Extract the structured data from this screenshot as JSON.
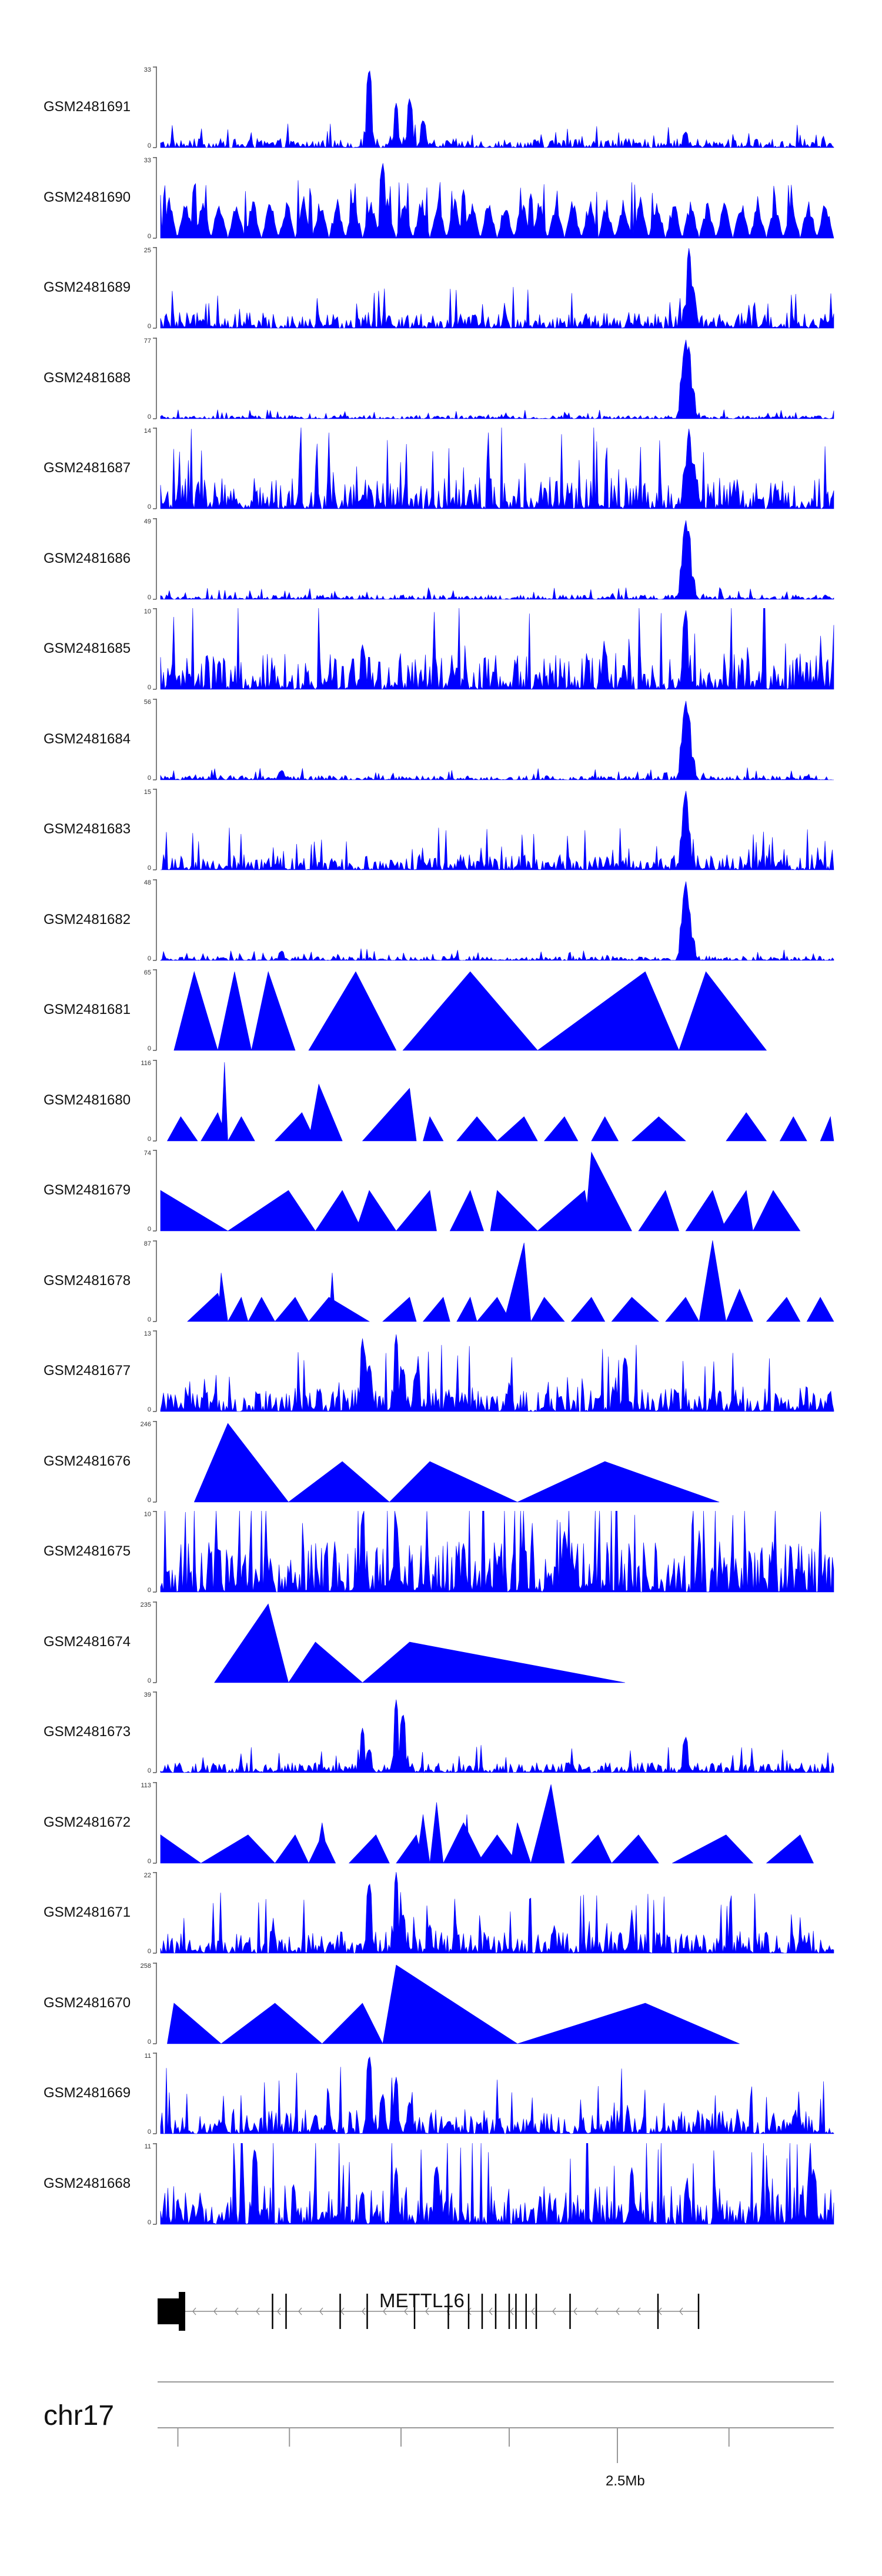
{
  "chart_data": {
    "type": "area",
    "color": "#0000ff",
    "tracks": [
      {
        "name": "GSM2481691",
        "ymax": "33",
        "ymin": "0",
        "pattern": "noise",
        "level": 0.08,
        "peaks": [
          [
            0.31,
            1.0
          ],
          [
            0.35,
            0.55
          ],
          [
            0.37,
            0.62
          ],
          [
            0.39,
            0.35
          ],
          [
            0.78,
            0.2
          ]
        ]
      },
      {
        "name": "GSM2481690",
        "ymax": "33",
        "ymin": "0",
        "pattern": "spikes",
        "level": 0.55,
        "peaks": [
          [
            0.05,
            0.65
          ],
          [
            0.33,
            0.95
          ],
          [
            0.45,
            0.6
          ],
          [
            0.55,
            0.55
          ]
        ]
      },
      {
        "name": "GSM2481689",
        "ymax": "25",
        "ymin": "0",
        "pattern": "noise",
        "level": 0.14,
        "peaks": [
          [
            0.78,
            0.3
          ],
          [
            0.785,
            1.0
          ],
          [
            0.79,
            0.55
          ]
        ]
      },
      {
        "name": "GSM2481688",
        "ymax": "77",
        "ymin": "0",
        "pattern": "noise",
        "level": 0.03,
        "peaks": [
          [
            0.775,
            0.55
          ],
          [
            0.78,
            1.0
          ],
          [
            0.785,
            0.9
          ],
          [
            0.79,
            0.4
          ]
        ]
      },
      {
        "name": "GSM2481687",
        "ymax": "14",
        "ymin": "0",
        "pattern": "noise",
        "level": 0.28,
        "peaks": [
          [
            0.78,
            0.55
          ],
          [
            0.785,
            1.0
          ],
          [
            0.79,
            0.6
          ]
        ]
      },
      {
        "name": "GSM2481686",
        "ymax": "49",
        "ymin": "0",
        "pattern": "noise",
        "level": 0.04,
        "peaks": [
          [
            0.775,
            0.45
          ],
          [
            0.78,
            1.0
          ],
          [
            0.785,
            0.85
          ],
          [
            0.79,
            0.3
          ]
        ]
      },
      {
        "name": "GSM2481685",
        "ymax": "10",
        "ymin": "0",
        "pattern": "noise",
        "level": 0.32,
        "peaks": [
          [
            0.78,
            1.0
          ],
          [
            0.66,
            0.5
          ],
          [
            0.3,
            0.55
          ]
        ]
      },
      {
        "name": "GSM2481684",
        "ymax": "56",
        "ymin": "0",
        "pattern": "noise",
        "level": 0.04,
        "peaks": [
          [
            0.18,
            0.12
          ],
          [
            0.775,
            0.5
          ],
          [
            0.78,
            1.0
          ],
          [
            0.785,
            0.8
          ],
          [
            0.79,
            0.3
          ]
        ]
      },
      {
        "name": "GSM2481683",
        "ymax": "15",
        "ymin": "0",
        "pattern": "noise",
        "level": 0.14,
        "peaks": [
          [
            0.775,
            0.45
          ],
          [
            0.78,
            1.0
          ],
          [
            0.785,
            0.5
          ]
        ]
      },
      {
        "name": "GSM2481682",
        "ymax": "48",
        "ymin": "0",
        "pattern": "noise",
        "level": 0.04,
        "peaks": [
          [
            0.18,
            0.12
          ],
          [
            0.775,
            0.5
          ],
          [
            0.78,
            1.0
          ],
          [
            0.785,
            0.65
          ],
          [
            0.79,
            0.3
          ]
        ]
      },
      {
        "name": "GSM2481681",
        "ymax": "65",
        "ymin": "0",
        "pattern": "triangles",
        "tris": [
          [
            0.02,
            0.05,
            0.085,
            0.97
          ],
          [
            0.085,
            0.11,
            0.135,
            0.97
          ],
          [
            0.135,
            0.16,
            0.2,
            0.97
          ],
          [
            0.22,
            0.29,
            0.35,
            0.97
          ],
          [
            0.36,
            0.46,
            0.56,
            0.97
          ],
          [
            0.56,
            0.72,
            0.77,
            0.97
          ],
          [
            0.77,
            0.81,
            0.9,
            0.97
          ]
        ]
      },
      {
        "name": "GSM2481680",
        "ymax": "116",
        "ymin": "0",
        "pattern": "triangles",
        "tris": [
          [
            0.01,
            0.03,
            0.055,
            0.3
          ],
          [
            0.06,
            0.085,
            0.1,
            0.35
          ],
          [
            0.09,
            0.095,
            0.1,
            0.97
          ],
          [
            0.1,
            0.12,
            0.14,
            0.3
          ],
          [
            0.17,
            0.21,
            0.23,
            0.35
          ],
          [
            0.22,
            0.235,
            0.27,
            0.7
          ],
          [
            0.3,
            0.37,
            0.38,
            0.65
          ],
          [
            0.39,
            0.4,
            0.42,
            0.3
          ],
          [
            0.44,
            0.47,
            0.5,
            0.3
          ],
          [
            0.5,
            0.54,
            0.56,
            0.3
          ],
          [
            0.57,
            0.6,
            0.62,
            0.3
          ],
          [
            0.64,
            0.66,
            0.68,
            0.3
          ],
          [
            0.7,
            0.74,
            0.78,
            0.3
          ],
          [
            0.84,
            0.87,
            0.9,
            0.35
          ],
          [
            0.92,
            0.94,
            0.96,
            0.3
          ],
          [
            0.98,
            0.995,
            1.0,
            0.3
          ]
        ]
      },
      {
        "name": "GSM2481679",
        "ymax": "74",
        "ymin": "0",
        "pattern": "triangles",
        "tris": [
          [
            0.0,
            0.0,
            0.1,
            0.5
          ],
          [
            0.1,
            0.19,
            0.23,
            0.5
          ],
          [
            0.23,
            0.27,
            0.3,
            0.5
          ],
          [
            0.29,
            0.31,
            0.35,
            0.5
          ],
          [
            0.35,
            0.4,
            0.41,
            0.5
          ],
          [
            0.43,
            0.46,
            0.48,
            0.5
          ],
          [
            0.49,
            0.5,
            0.56,
            0.5
          ],
          [
            0.56,
            0.63,
            0.64,
            0.5
          ],
          [
            0.63,
            0.64,
            0.7,
            0.97
          ],
          [
            0.71,
            0.75,
            0.77,
            0.5
          ],
          [
            0.78,
            0.82,
            0.84,
            0.5
          ],
          [
            0.83,
            0.87,
            0.88,
            0.5
          ],
          [
            0.88,
            0.91,
            0.95,
            0.5
          ]
        ]
      },
      {
        "name": "GSM2481678",
        "ymax": "87",
        "ymin": "0",
        "pattern": "triangles",
        "tris": [
          [
            0.04,
            0.085,
            0.1,
            0.35
          ],
          [
            0.085,
            0.09,
            0.1,
            0.6
          ],
          [
            0.1,
            0.12,
            0.13,
            0.3
          ],
          [
            0.13,
            0.15,
            0.17,
            0.3
          ],
          [
            0.17,
            0.2,
            0.22,
            0.3
          ],
          [
            0.22,
            0.25,
            0.31,
            0.3
          ],
          [
            0.25,
            0.255,
            0.26,
            0.6
          ],
          [
            0.33,
            0.37,
            0.38,
            0.3
          ],
          [
            0.39,
            0.42,
            0.43,
            0.3
          ],
          [
            0.44,
            0.46,
            0.47,
            0.3
          ],
          [
            0.47,
            0.5,
            0.52,
            0.3
          ],
          [
            0.51,
            0.54,
            0.55,
            0.97
          ],
          [
            0.55,
            0.57,
            0.6,
            0.3
          ],
          [
            0.61,
            0.64,
            0.66,
            0.3
          ],
          [
            0.67,
            0.7,
            0.74,
            0.3
          ],
          [
            0.75,
            0.78,
            0.8,
            0.3
          ],
          [
            0.8,
            0.82,
            0.84,
            1.0
          ],
          [
            0.84,
            0.86,
            0.88,
            0.4
          ],
          [
            0.9,
            0.93,
            0.95,
            0.3
          ],
          [
            0.96,
            0.98,
            1.0,
            0.3
          ]
        ]
      },
      {
        "name": "GSM2481677",
        "ymax": "13",
        "ymin": "0",
        "pattern": "noise",
        "level": 0.22,
        "peaks": [
          [
            0.3,
            0.9
          ],
          [
            0.31,
            0.6
          ],
          [
            0.35,
            0.95
          ],
          [
            0.36,
            0.55
          ],
          [
            0.38,
            0.5
          ],
          [
            0.69,
            0.7
          ]
        ]
      },
      {
        "name": "GSM2481676",
        "ymax": "246",
        "ymin": "0",
        "pattern": "triangles",
        "tris": [
          [
            0.05,
            0.1,
            0.19,
            0.97
          ],
          [
            0.19,
            0.27,
            0.34,
            0.5
          ],
          [
            0.34,
            0.4,
            0.53,
            0.5
          ],
          [
            0.53,
            0.66,
            0.83,
            0.5
          ]
        ]
      },
      {
        "name": "GSM2481675",
        "ymax": "10",
        "ymin": "0",
        "pattern": "noise",
        "level": 0.45,
        "peaks": [
          [
            0.3,
            0.95
          ],
          [
            0.35,
            0.9
          ],
          [
            0.45,
            0.6
          ],
          [
            0.6,
            0.75
          ]
        ]
      },
      {
        "name": "GSM2481674",
        "ymax": "235",
        "ymin": "0",
        "pattern": "triangles",
        "tris": [
          [
            0.08,
            0.16,
            0.19,
            0.97
          ],
          [
            0.19,
            0.23,
            0.3,
            0.5
          ],
          [
            0.3,
            0.37,
            0.69,
            0.5
          ]
        ]
      },
      {
        "name": "GSM2481673",
        "ymax": "39",
        "ymin": "0",
        "pattern": "noise",
        "level": 0.09,
        "peaks": [
          [
            0.3,
            0.55
          ],
          [
            0.31,
            0.3
          ],
          [
            0.35,
            0.9
          ],
          [
            0.36,
            0.75
          ],
          [
            0.78,
            0.45
          ]
        ]
      },
      {
        "name": "GSM2481672",
        "ymax": "113",
        "ymin": "0",
        "pattern": "triangles",
        "tris": [
          [
            0.0,
            0.0,
            0.06,
            0.35
          ],
          [
            0.06,
            0.13,
            0.17,
            0.35
          ],
          [
            0.17,
            0.2,
            0.22,
            0.35
          ],
          [
            0.22,
            0.24,
            0.26,
            0.35
          ],
          [
            0.23,
            0.24,
            0.25,
            0.5
          ],
          [
            0.28,
            0.32,
            0.34,
            0.35
          ],
          [
            0.35,
            0.38,
            0.39,
            0.35
          ],
          [
            0.38,
            0.39,
            0.4,
            0.6
          ],
          [
            0.4,
            0.41,
            0.42,
            0.75
          ],
          [
            0.42,
            0.45,
            0.48,
            0.5
          ],
          [
            0.45,
            0.455,
            0.46,
            0.6
          ],
          [
            0.47,
            0.5,
            0.53,
            0.35
          ],
          [
            0.52,
            0.53,
            0.55,
            0.5
          ],
          [
            0.55,
            0.58,
            0.6,
            0.97
          ],
          [
            0.61,
            0.65,
            0.67,
            0.35
          ],
          [
            0.67,
            0.71,
            0.74,
            0.35
          ],
          [
            0.76,
            0.84,
            0.88,
            0.35
          ],
          [
            0.9,
            0.95,
            0.97,
            0.35
          ]
        ]
      },
      {
        "name": "GSM2481671",
        "ymax": "22",
        "ymin": "0",
        "pattern": "noise",
        "level": 0.2,
        "peaks": [
          [
            0.31,
            0.9
          ],
          [
            0.35,
            1.0
          ],
          [
            0.36,
            0.5
          ],
          [
            0.4,
            0.35
          ],
          [
            0.7,
            0.4
          ]
        ]
      },
      {
        "name": "GSM2481670",
        "ymax": "258",
        "ymin": "0",
        "pattern": "triangles",
        "tris": [
          [
            0.01,
            0.02,
            0.09,
            0.5
          ],
          [
            0.09,
            0.17,
            0.24,
            0.5
          ],
          [
            0.24,
            0.3,
            0.33,
            0.5
          ],
          [
            0.33,
            0.35,
            0.53,
            0.97
          ],
          [
            0.53,
            0.72,
            0.86,
            0.5
          ]
        ]
      },
      {
        "name": "GSM2481669",
        "ymax": "11",
        "ymin": "0",
        "pattern": "noise",
        "level": 0.22,
        "peaks": [
          [
            0.31,
            1.0
          ],
          [
            0.33,
            0.5
          ],
          [
            0.35,
            0.7
          ],
          [
            0.37,
            0.4
          ]
        ]
      },
      {
        "name": "GSM2481668",
        "ymax": "11",
        "ymin": "0",
        "pattern": "noise",
        "level": 0.35,
        "peaks": [
          [
            0.14,
            0.97
          ],
          [
            0.35,
            0.7
          ],
          [
            0.41,
            0.75
          ],
          [
            0.7,
            0.7
          ],
          [
            0.97,
            0.7
          ]
        ]
      }
    ],
    "gene": {
      "name": "METTL16",
      "exons": [
        0.0,
        0.034,
        0.17,
        0.19,
        0.27,
        0.31,
        0.38,
        0.43,
        0.46,
        0.48,
        0.5,
        0.52,
        0.53,
        0.545,
        0.56,
        0.61,
        0.74,
        0.8
      ],
      "start": 0.0,
      "end": 0.8
    },
    "chromosome": "chr17",
    "ruler": {
      "tick_label": "2.5Mb",
      "tick_label_pos": 0.68,
      "ticks": [
        0.03,
        0.195,
        0.36,
        0.52,
        0.68,
        0.845
      ]
    }
  }
}
